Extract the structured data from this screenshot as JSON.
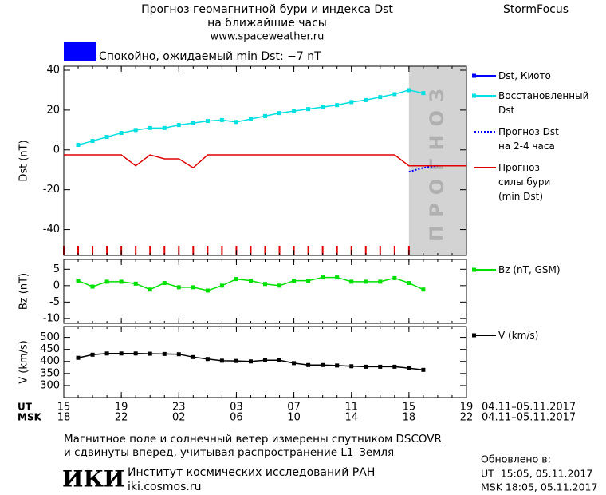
{
  "header": {
    "title": "Прогноз геомагнитной бури и индекса Dst",
    "subtitle": "на ближайшие часы",
    "url": "www.spaceweather.ru",
    "brand": "StormFocus"
  },
  "status": {
    "color": "#0000ff",
    "text": "Спокойно, ожидаемый min Dst: −7 nT"
  },
  "chart_data": [
    {
      "type": "line",
      "ylabel": "Dst (nT)",
      "xlim": [
        0,
        28
      ],
      "ylim": [
        -53,
        42
      ],
      "yticks": [
        -40,
        -20,
        0,
        20,
        40
      ],
      "forecast_region": {
        "label": "ПРОГНОЗ",
        "x": [
          24,
          28
        ],
        "color": "#d3d3d3",
        "hour_marker_color": "#e00000"
      },
      "series": [
        {
          "name": "Dst, Киото",
          "color": "#0000ff",
          "marker": "square",
          "x": [],
          "values": []
        },
        {
          "name": "Восстановленный\nDst",
          "color": "#00e0e0",
          "marker": "square",
          "x": [
            1,
            2,
            3,
            4,
            5,
            6,
            7,
            8,
            9,
            10,
            11,
            12,
            13,
            14,
            15,
            16,
            17,
            18,
            19,
            20,
            21,
            22,
            23,
            24,
            25
          ],
          "values": [
            2.5,
            4.5,
            6.5,
            8.5,
            10,
            11,
            11,
            12.5,
            13.5,
            14.5,
            15,
            14,
            15.5,
            17,
            18.5,
            19.5,
            20.5,
            21.5,
            22.5,
            24,
            25,
            26.5,
            28,
            30,
            28.5
          ]
        },
        {
          "name": "Прогноз Dst\nна 2-4 часа",
          "color": "#0000ff",
          "dash": true,
          "x": [
            24,
            25,
            26
          ],
          "values": [
            -11,
            -9,
            -8
          ]
        },
        {
          "name": "Прогноз\nсилы бури\n(min Dst)",
          "color": "#e00000",
          "x": [
            0,
            1,
            2,
            3,
            4,
            5,
            6,
            7,
            8,
            9,
            10,
            11,
            12,
            13,
            14,
            15,
            16,
            17,
            18,
            19,
            20,
            21,
            22,
            23,
            24,
            25,
            26,
            27,
            28
          ],
          "values": [
            -2.5,
            -2.5,
            -2.5,
            -2.5,
            -2.5,
            -8,
            -2.5,
            -4.5,
            -4.5,
            -9,
            -2.5,
            -2.5,
            -2.5,
            -2.5,
            -2.5,
            -2.5,
            -2.5,
            -2.5,
            -2.5,
            -2.5,
            -2.5,
            -2.5,
            -2.5,
            -2.5,
            -8,
            -8,
            -8,
            -8,
            -8
          ]
        }
      ]
    },
    {
      "type": "line",
      "ylabel": "Bz (nT)",
      "xlim": [
        0,
        28
      ],
      "ylim": [
        -11.5,
        8
      ],
      "yticks": [
        -10,
        -5,
        0,
        5
      ],
      "series": [
        {
          "name": "Bz (nT, GSM)",
          "color": "#00e000",
          "marker": "square",
          "x": [
            1,
            2,
            3,
            4,
            5,
            6,
            7,
            8,
            9,
            10,
            11,
            12,
            13,
            14,
            15,
            16,
            17,
            18,
            19,
            20,
            21,
            22,
            23,
            24,
            25
          ],
          "values": [
            1.5,
            -0.3,
            1.2,
            1.2,
            0.6,
            -1.2,
            0.8,
            -0.5,
            -0.5,
            -1.5,
            0,
            2,
            1.5,
            0.5,
            0,
            1.5,
            1.5,
            2.5,
            2.5,
            1.2,
            1.2,
            1.2,
            2.3,
            0.8,
            -1.2
          ]
        }
      ]
    },
    {
      "type": "line",
      "ylabel": "V (km/s)",
      "xlim": [
        0,
        28
      ],
      "ylim": [
        250,
        545
      ],
      "yticks": [
        300,
        350,
        400,
        450,
        500
      ],
      "xtick_row_labels": [
        "UT",
        "MSK"
      ],
      "date_range": "04.11–05.11.2017",
      "xticks": [
        {
          "value": 0,
          "label": "15"
        },
        {
          "value": 4,
          "label": "19"
        },
        {
          "value": 8,
          "label": "23"
        },
        {
          "value": 12,
          "label": "03"
        },
        {
          "value": 16,
          "label": "07"
        },
        {
          "value": 20,
          "label": "11"
        },
        {
          "value": 24,
          "label": "15"
        },
        {
          "value": 28,
          "label": "19"
        }
      ],
      "msk_xticks": [
        {
          "value": 0,
          "label": "18"
        },
        {
          "value": 4,
          "label": "22"
        },
        {
          "value": 8,
          "label": "02"
        },
        {
          "value": 12,
          "label": "06"
        },
        {
          "value": 16,
          "label": "10"
        },
        {
          "value": 20,
          "label": "14"
        },
        {
          "value": 24,
          "label": "18"
        },
        {
          "value": 28,
          "label": "22"
        }
      ],
      "series": [
        {
          "name": "V (km/s)",
          "color": "#000000",
          "marker": "square",
          "x": [
            1,
            2,
            3,
            4,
            5,
            6,
            7,
            8,
            9,
            10,
            11,
            12,
            13,
            14,
            15,
            16,
            17,
            18,
            19,
            20,
            21,
            22,
            23,
            24,
            25
          ],
          "values": [
            415,
            428,
            433,
            433,
            433,
            432,
            431,
            430,
            418,
            410,
            403,
            402,
            400,
            405,
            405,
            393,
            385,
            385,
            383,
            380,
            378,
            378,
            378,
            372,
            365
          ]
        }
      ]
    }
  ],
  "footer": {
    "note": [
      "Магнитное поле и солнечный ветер измерены спутником DSCOVR",
      "и сдвинуты вперед, учитывая распространение L1–Земля"
    ],
    "logo": "ИКИ",
    "institute": "Институт космических исследований РАН",
    "site": "iki.cosmos.ru",
    "updated": {
      "title": "Обновлено в:",
      "ut": "UT  15:05, 05.11.2017",
      "msk": "MSK 18:05, 05.11.2017"
    }
  }
}
